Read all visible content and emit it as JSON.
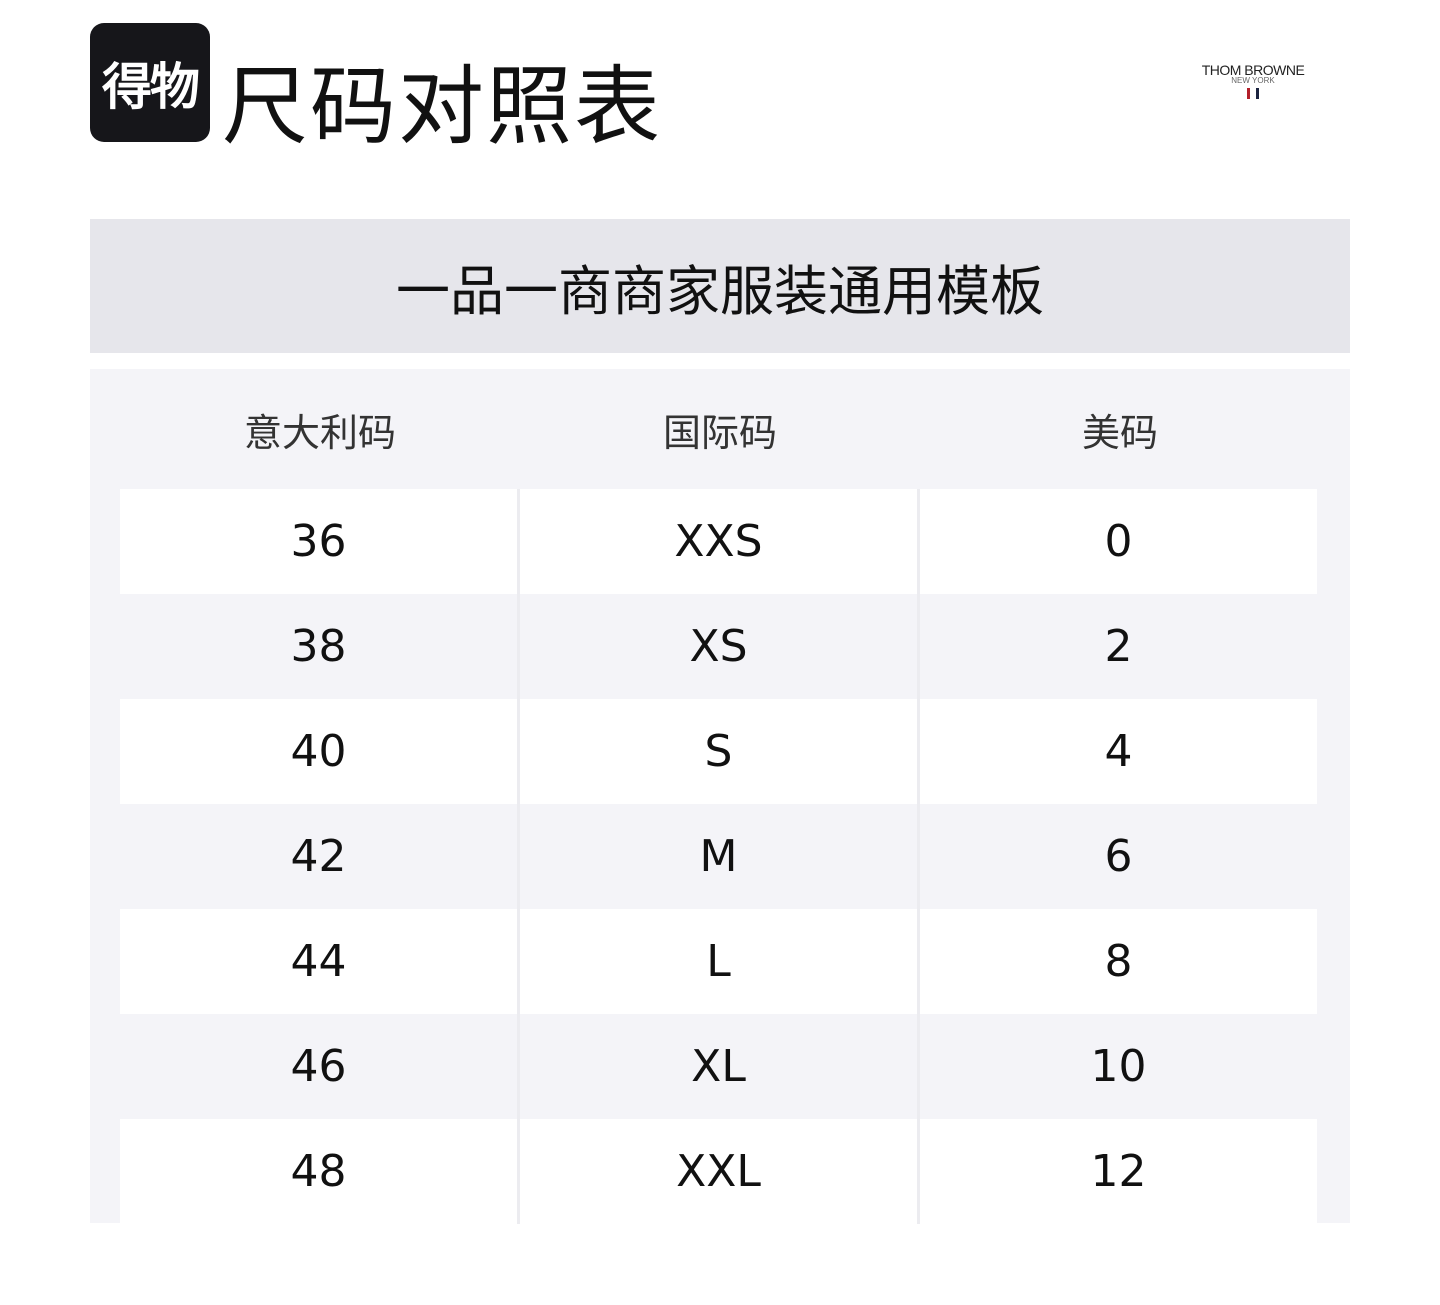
{
  "header": {
    "logo_text": "得物",
    "title": "尺码对照表",
    "brand": {
      "name": "THOM BROWNE",
      "sub": "NEW YORK",
      "stripe_colors": [
        "#b3202a",
        "#1c2340"
      ]
    }
  },
  "banner": "一品一商商家服装通用模板",
  "table": {
    "columns": [
      "意大利码",
      "国际码",
      "美码"
    ],
    "rows": [
      [
        "36",
        "XXS",
        "0"
      ],
      [
        "38",
        "XS",
        "2"
      ],
      [
        "40",
        "S",
        "4"
      ],
      [
        "42",
        "M",
        "6"
      ],
      [
        "44",
        "L",
        "8"
      ],
      [
        "46",
        "XL",
        "10"
      ],
      [
        "48",
        "XXL",
        "12"
      ]
    ]
  }
}
